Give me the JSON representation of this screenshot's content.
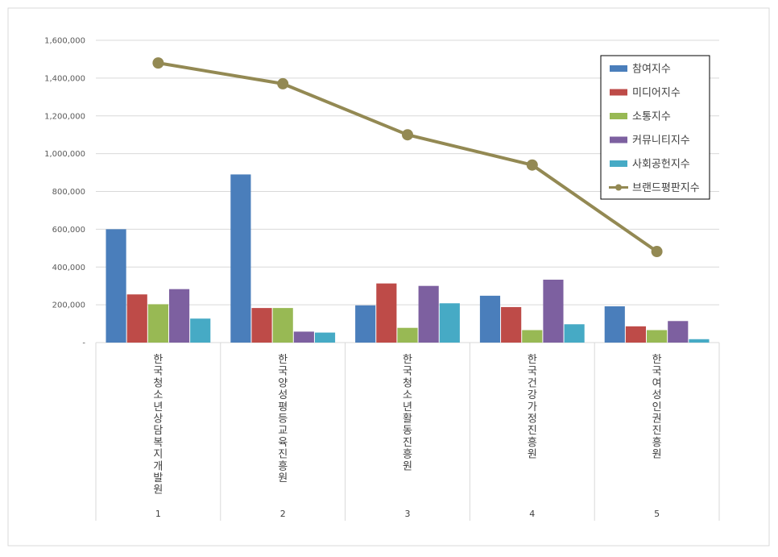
{
  "chart_data": {
    "type": "bar",
    "categories": [
      "한국청소년상담복지개발원",
      "한국양성평등교육진흥원",
      "한국청소년활동진흥원",
      "한국건강가정진흥원",
      "한국여성인권진흥원"
    ],
    "ranks": [
      "1",
      "2",
      "3",
      "4",
      "5"
    ],
    "series": [
      {
        "name": "참여지수",
        "type": "bar",
        "color": "#4a7ebb",
        "values": [
          600000,
          890000,
          197000,
          248000,
          192000
        ]
      },
      {
        "name": "미디어지수",
        "type": "bar",
        "color": "#be4b48",
        "values": [
          255000,
          183000,
          313000,
          188000,
          86000
        ]
      },
      {
        "name": "소통지수",
        "type": "bar",
        "color": "#98b954",
        "values": [
          203000,
          183000,
          78000,
          66000,
          66000
        ]
      },
      {
        "name": "커뮤니티지수",
        "type": "bar",
        "color": "#7d60a0",
        "values": [
          283000,
          58000,
          300000,
          333000,
          114000
        ]
      },
      {
        "name": "사회공헌지수",
        "type": "bar",
        "color": "#46aac5",
        "values": [
          127000,
          53000,
          208000,
          97000,
          18000
        ]
      },
      {
        "name": "브랜드평판지수",
        "type": "line",
        "color": "#938953",
        "values": [
          1480000,
          1370000,
          1100000,
          940000,
          482000
        ]
      }
    ],
    "ylim": [
      0,
      1600000
    ],
    "yticks": [
      "-",
      "200,000",
      "400,000",
      "600,000",
      "800,000",
      "1,000,000",
      "1,200,000",
      "1,400,000",
      "1,600,000"
    ],
    "grid": true,
    "legend_position": "right"
  }
}
